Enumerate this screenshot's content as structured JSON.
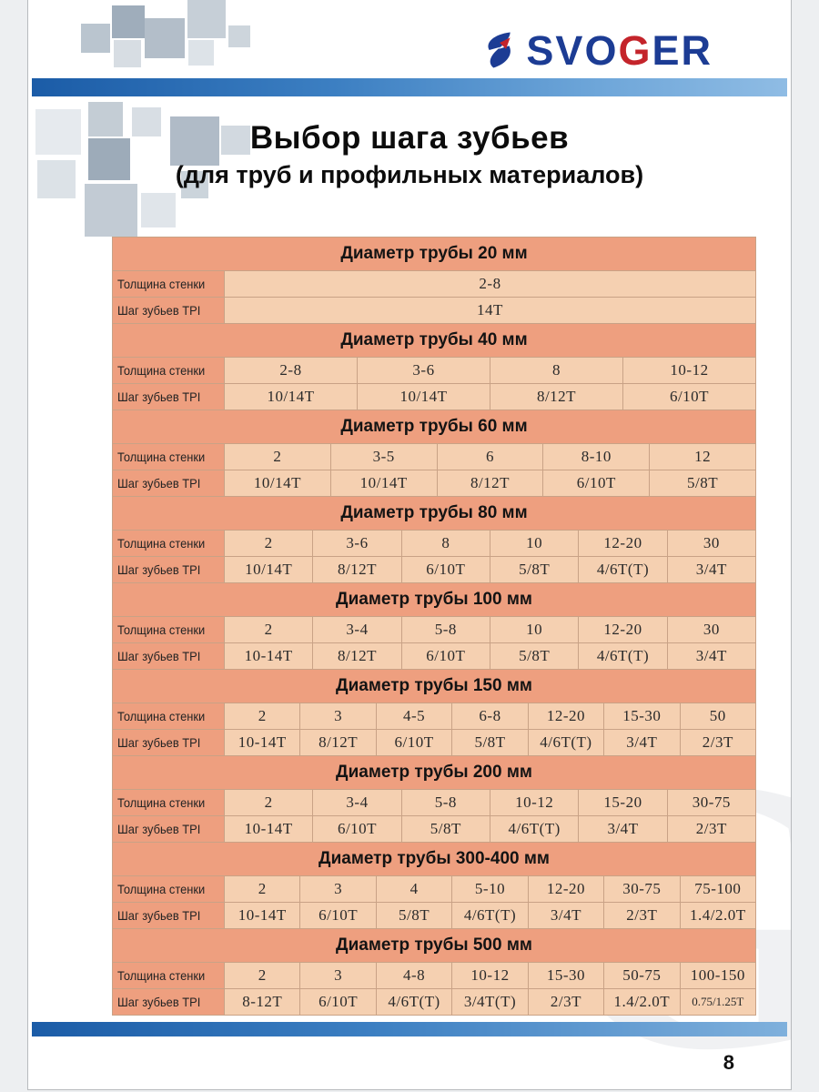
{
  "logo": {
    "part1": "SVO",
    "part2": "G",
    "part3": "ER"
  },
  "title": {
    "line1": "Выбор шага зубьев",
    "line2": "(для труб и профильных материалов)"
  },
  "row_labels": {
    "thickness": "Толщина стенки",
    "tpi": "Шаг зубьев TPI"
  },
  "watermark_letter": "G",
  "page_number": "8",
  "colors": {
    "logo_navy": "#1c3c94",
    "logo_red": "#c4242b",
    "bar_blue": "#1b5ca7",
    "table_header_bg": "#ee9f7f",
    "table_cell_bg": "#f5d0b1"
  },
  "sections": [
    {
      "header": "Диаметр трубы 20 мм",
      "thickness": [
        "2-8"
      ],
      "tpi": [
        "14T"
      ]
    },
    {
      "header": "Диаметр трубы 40 мм",
      "thickness": [
        "2-8",
        "3-6",
        "8",
        "10-12"
      ],
      "tpi": [
        "10/14T",
        "10/14T",
        "8/12T",
        "6/10T"
      ]
    },
    {
      "header": "Диаметр трубы 60 мм",
      "thickness": [
        "2",
        "3-5",
        "6",
        "8-10",
        "12"
      ],
      "tpi": [
        "10/14T",
        "10/14T",
        "8/12T",
        "6/10T",
        "5/8T"
      ]
    },
    {
      "header": "Диаметр трубы 80 мм",
      "thickness": [
        "2",
        "3-6",
        "8",
        "10",
        "12-20",
        "30"
      ],
      "tpi": [
        "10/14T",
        "8/12T",
        "6/10T",
        "5/8T",
        "4/6T(T)",
        "3/4T"
      ]
    },
    {
      "header": "Диаметр трубы 100 мм",
      "thickness": [
        "2",
        "3-4",
        "5-8",
        "10",
        "12-20",
        "30"
      ],
      "tpi": [
        "10-14T",
        "8/12T",
        "6/10T",
        "5/8T",
        "4/6T(T)",
        "3/4T"
      ]
    },
    {
      "header": "Диаметр трубы 150 мм",
      "thickness": [
        "2",
        "3",
        "4-5",
        "6-8",
        "12-20",
        "15-30",
        "50"
      ],
      "tpi": [
        "10-14T",
        "8/12T",
        "6/10T",
        "5/8T",
        "4/6T(T)",
        "3/4T",
        "2/3T"
      ]
    },
    {
      "header": "Диаметр трубы 200 мм",
      "thickness": [
        "2",
        "3-4",
        "5-8",
        "10-12",
        "15-20",
        "30-75"
      ],
      "tpi": [
        "10-14T",
        "6/10T",
        "5/8T",
        "4/6T(T)",
        "3/4T",
        "2/3T"
      ]
    },
    {
      "header": "Диаметр трубы 300-400 мм",
      "thickness": [
        "2",
        "3",
        "4",
        "5-10",
        "12-20",
        "30-75",
        "75-100"
      ],
      "tpi": [
        "10-14T",
        "6/10T",
        "5/8T",
        "4/6T(T)",
        "3/4T",
        "2/3T",
        "1.4/2.0T"
      ]
    },
    {
      "header": "Диаметр трубы 500 мм",
      "thickness": [
        "2",
        "3",
        "4-8",
        "10-12",
        "15-30",
        "50-75",
        "100-150"
      ],
      "tpi": [
        "8-12T",
        "6/10T",
        "4/6T(T)",
        "3/4T(T)",
        "2/3T",
        "1.4/2.0T",
        "0.75/1.25T"
      ]
    }
  ]
}
